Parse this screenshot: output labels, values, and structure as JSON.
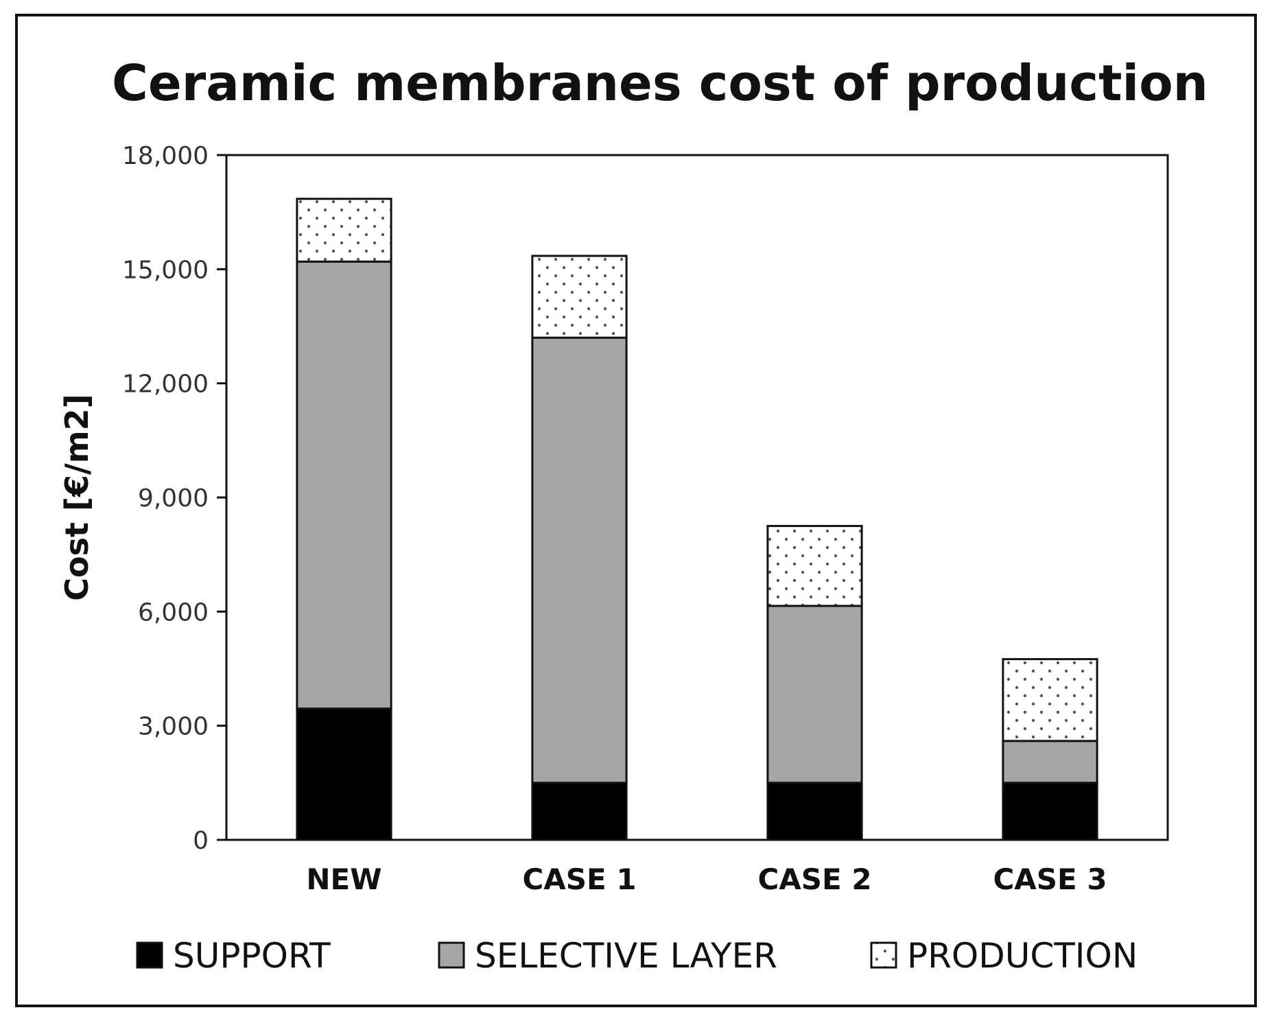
{
  "chart_data": {
    "type": "bar",
    "stacked": true,
    "title": "Ceramic membranes cost of production",
    "ylabel": "Cost [€/m2]",
    "xlabel": "",
    "ylim": [
      0,
      18000
    ],
    "yticks": [
      0,
      3000,
      6000,
      9000,
      12000,
      15000,
      18000
    ],
    "ytick_labels": [
      "0",
      "3,000",
      "6,000",
      "9,000",
      "12,000",
      "15,000",
      "18,000"
    ],
    "categories": [
      "NEW",
      "CASE 1",
      "CASE 2",
      "CASE 3"
    ],
    "series": [
      {
        "name": "SUPPORT",
        "values": [
          3450,
          1500,
          1500,
          1500
        ],
        "color": "#000000",
        "pattern": "solid"
      },
      {
        "name": "SELECTIVE LAYER",
        "values": [
          11750,
          11700,
          4650,
          1100
        ],
        "color": "#a6a6a6",
        "pattern": "solid"
      },
      {
        "name": "PRODUCTION",
        "values": [
          1650,
          2150,
          2100,
          2150
        ],
        "color": "#ffffff",
        "pattern": "dots"
      }
    ],
    "grid": false,
    "legend_position": "bottom"
  }
}
